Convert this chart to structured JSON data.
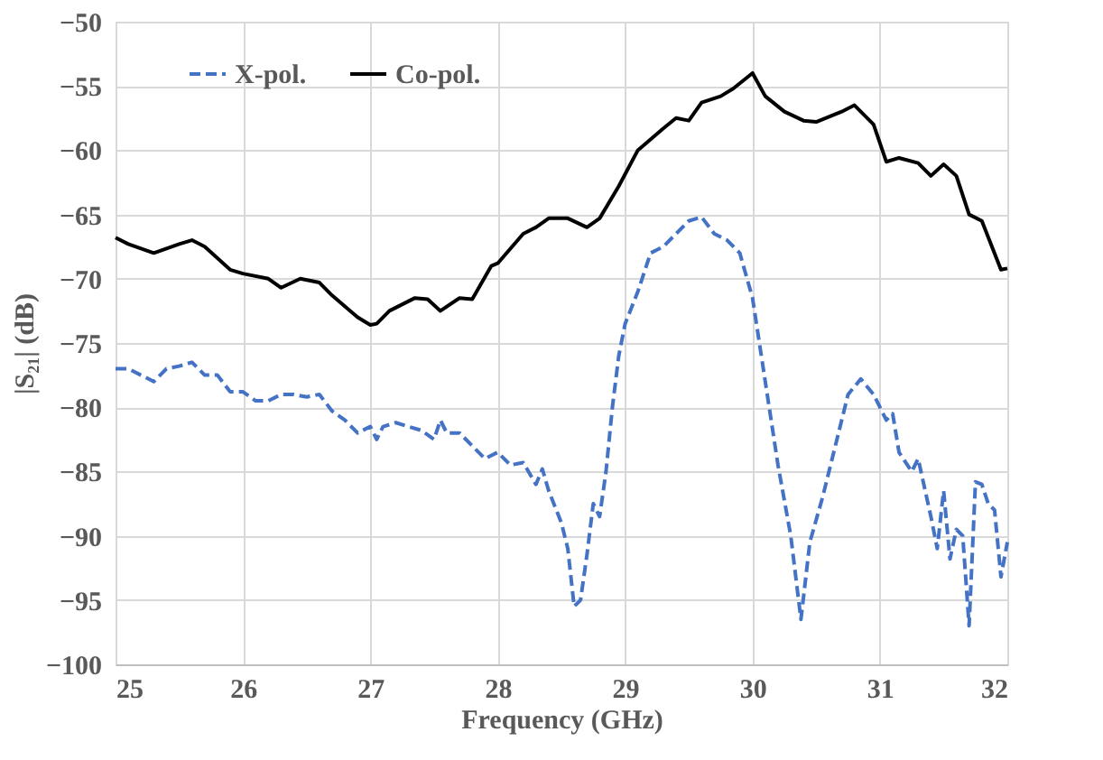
{
  "chart_data": {
    "type": "line",
    "xlabel": "Frequency (GHz)",
    "ylabel": "|S₂₁| (dB)",
    "xlim": [
      25,
      32
    ],
    "xticks": [
      25,
      26,
      27,
      28,
      29,
      30,
      31,
      32
    ],
    "ylim": [
      -100,
      -50
    ],
    "yticks": [
      -100,
      -95,
      -90,
      -85,
      -80,
      -75,
      -70,
      -65,
      -60,
      -55,
      -50
    ],
    "grid": true,
    "legend": "top left",
    "marker": "none",
    "series": [
      {
        "name": "X-pol.",
        "color": "#4472c4",
        "line_style": "dashed",
        "x": [
          25.0,
          25.1,
          25.2,
          25.3,
          25.4,
          25.5,
          25.6,
          25.7,
          25.8,
          25.9,
          26.0,
          26.1,
          26.2,
          26.3,
          26.4,
          26.5,
          26.6,
          26.7,
          26.8,
          26.9,
          27.0,
          27.05,
          27.1,
          27.2,
          27.3,
          27.4,
          27.5,
          27.55,
          27.6,
          27.7,
          27.8,
          27.9,
          28.0,
          28.1,
          28.2,
          28.3,
          28.35,
          28.4,
          28.5,
          28.55,
          28.6,
          28.65,
          28.7,
          28.75,
          28.8,
          28.85,
          28.9,
          28.95,
          29.0,
          29.1,
          29.2,
          29.3,
          29.4,
          29.5,
          29.6,
          29.7,
          29.8,
          29.9,
          30.0,
          30.1,
          30.2,
          30.3,
          30.38,
          30.45,
          30.55,
          30.65,
          30.75,
          30.85,
          30.95,
          31.05,
          31.1,
          31.15,
          31.25,
          31.3,
          31.4,
          31.45,
          31.5,
          31.55,
          31.6,
          31.65,
          31.7,
          31.75,
          31.8,
          31.85,
          31.9,
          31.95,
          32.0
        ],
        "values": [
          -77,
          -77,
          -77.5,
          -78,
          -77,
          -76.8,
          -76.5,
          -77.5,
          -77.5,
          -78.8,
          -78.8,
          -79.5,
          -79.5,
          -79,
          -79,
          -79.2,
          -79,
          -80.3,
          -81,
          -82,
          -81.5,
          -82.5,
          -81.5,
          -81.2,
          -81.5,
          -81.8,
          -82.5,
          -81,
          -82,
          -82,
          -83,
          -84,
          -83.5,
          -84.5,
          -84.3,
          -86,
          -84.8,
          -86.5,
          -89,
          -91,
          -95.5,
          -95,
          -91.5,
          -87.5,
          -88.5,
          -85,
          -80,
          -76,
          -73.5,
          -71,
          -68,
          -67.5,
          -66.5,
          -65.5,
          -65.2,
          -66.5,
          -67,
          -68,
          -71.5,
          -78,
          -84.5,
          -90,
          -96.5,
          -90.5,
          -87,
          -83,
          -79,
          -77.8,
          -79,
          -81,
          -80.5,
          -83.5,
          -85,
          -84,
          -88.5,
          -91,
          -86.5,
          -91.8,
          -89.5,
          -90,
          -97,
          -85.8,
          -86,
          -87.5,
          -88,
          -93.2,
          -90.5
        ]
      },
      {
        "name": "Co-pol.",
        "color": "#000000",
        "line_style": "solid",
        "x": [
          25.0,
          25.1,
          25.3,
          25.5,
          25.6,
          25.7,
          25.9,
          26.0,
          26.2,
          26.3,
          26.45,
          26.6,
          26.7,
          26.9,
          27.0,
          27.05,
          27.15,
          27.35,
          27.45,
          27.55,
          27.7,
          27.8,
          27.95,
          28.0,
          28.2,
          28.3,
          28.4,
          28.55,
          28.7,
          28.8,
          28.95,
          29.1,
          29.3,
          29.4,
          29.5,
          29.6,
          29.75,
          29.85,
          30.0,
          30.1,
          30.25,
          30.4,
          30.5,
          30.7,
          30.8,
          30.95,
          31.05,
          31.15,
          31.3,
          31.4,
          31.5,
          31.6,
          31.7,
          31.8,
          31.95,
          32.0
        ],
        "values": [
          -66.8,
          -67.3,
          -68,
          -67.3,
          -67,
          -67.5,
          -69.3,
          -69.6,
          -70,
          -70.7,
          -70,
          -70.3,
          -71.3,
          -73,
          -73.6,
          -73.5,
          -72.5,
          -71.5,
          -71.6,
          -72.5,
          -71.5,
          -71.6,
          -69,
          -68.8,
          -66.5,
          -66,
          -65.3,
          -65.3,
          -66,
          -65.3,
          -62.8,
          -60,
          -58.3,
          -57.5,
          -57.7,
          -56.3,
          -55.8,
          -55.2,
          -54,
          -55.8,
          -57,
          -57.7,
          -57.8,
          -57,
          -56.5,
          -58,
          -60.9,
          -60.6,
          -61,
          -62,
          -61.1,
          -62,
          -65,
          -65.5,
          -69.3,
          -69.2
        ]
      }
    ]
  }
}
